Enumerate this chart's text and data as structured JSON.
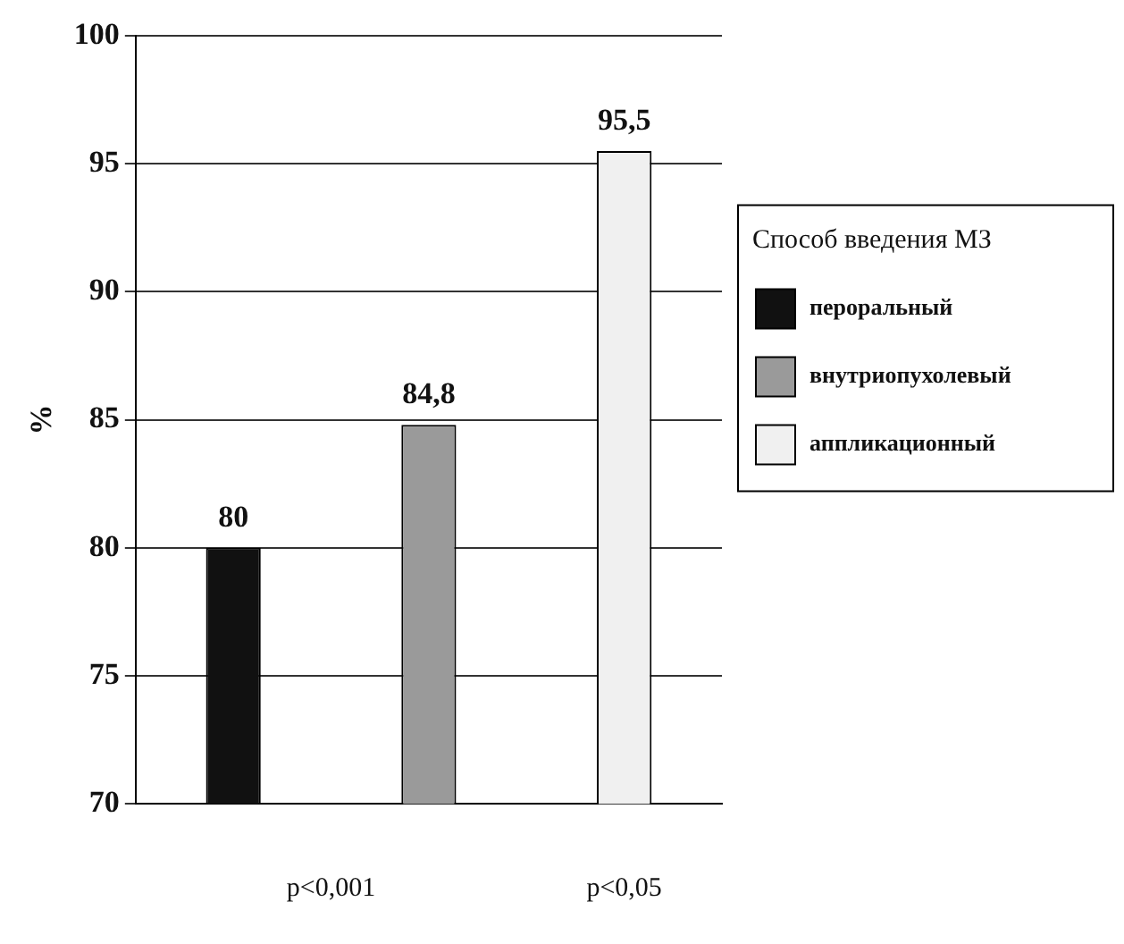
{
  "chart_data": {
    "type": "bar",
    "categories": [
      null,
      null,
      null
    ],
    "series": [
      {
        "name": "пероральный",
        "color": "#111111",
        "values": [
          80,
          null,
          null
        ],
        "value_labels": [
          "80",
          null,
          null
        ]
      },
      {
        "name": "внутриопухолевый",
        "color": "#9a9a9a",
        "values": [
          null,
          84.8,
          null
        ],
        "value_labels": [
          null,
          "84,8",
          null
        ]
      },
      {
        "name": "аппликационный",
        "color": "#f0f0f0",
        "values": [
          null,
          null,
          95.5
        ],
        "value_labels": [
          null,
          null,
          "95,5"
        ]
      }
    ],
    "ylabel": "%",
    "legend_title": "Способ введения МЗ",
    "ylim": [
      70,
      100
    ],
    "yticks": [
      70,
      75,
      80,
      85,
      90,
      95,
      100
    ],
    "grid": "y",
    "legend": "right",
    "annotations": [
      "p<0,001",
      "p<0,05"
    ]
  }
}
